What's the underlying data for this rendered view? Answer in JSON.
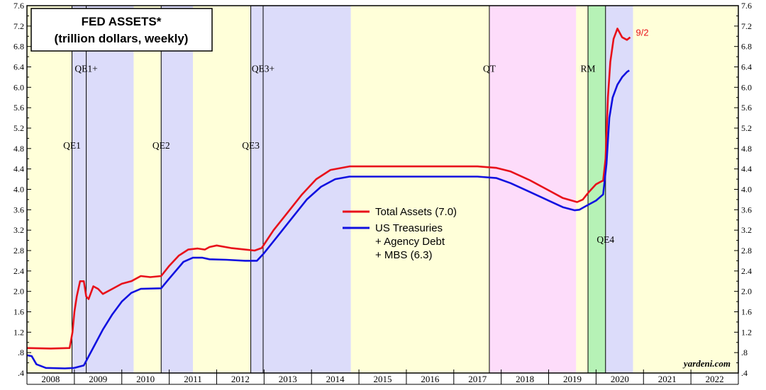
{
  "chart_data": {
    "type": "line",
    "title": "FED ASSETS*",
    "subtitle": "(trillion dollars, weekly)",
    "y_axis": {
      "ylim": [
        0.4,
        7.6
      ],
      "ticks": [
        ".4",
        ".8",
        "1.2",
        "1.6",
        "2.0",
        "2.4",
        "2.8",
        "3.2",
        "3.6",
        "4.0",
        "4.4",
        "4.8",
        "5.2",
        "5.6",
        "6.0",
        "6.4",
        "6.8",
        "7.2",
        "7.6"
      ],
      "tick_values": [
        0.4,
        0.8,
        1.2,
        1.6,
        2.0,
        2.4,
        2.8,
        3.2,
        3.6,
        4.0,
        4.4,
        4.8,
        5.2,
        5.6,
        6.0,
        6.4,
        6.8,
        7.2,
        7.6
      ],
      "both_sides": true
    },
    "x_axis": {
      "xlim": [
        2008.0,
        2023.0
      ],
      "year_labels": [
        "2008",
        "2009",
        "2010",
        "2011",
        "2012",
        "2013",
        "2014",
        "2015",
        "2016",
        "2017",
        "2018",
        "2019",
        "2020",
        "2021",
        "2022"
      ]
    },
    "shaded_periods": [
      {
        "start": 2008.0,
        "end": 2008.95,
        "color": "#ffffd9"
      },
      {
        "start": 2008.95,
        "end": 2010.25,
        "color": "#dcdcfa"
      },
      {
        "start": 2010.25,
        "end": 2010.83,
        "color": "#ffffd9"
      },
      {
        "start": 2010.83,
        "end": 2011.5,
        "color": "#dcdcfa"
      },
      {
        "start": 2011.5,
        "end": 2012.72,
        "color": "#ffffd9"
      },
      {
        "start": 2012.72,
        "end": 2014.83,
        "color": "#dcdcfa"
      },
      {
        "start": 2014.83,
        "end": 2017.75,
        "color": "#ffffd9"
      },
      {
        "start": 2017.75,
        "end": 2019.58,
        "color": "#fddcfa"
      },
      {
        "start": 2019.58,
        "end": 2019.83,
        "color": "#ffffd9"
      },
      {
        "start": 2019.83,
        "end": 2020.2,
        "color": "#b6f2b6"
      },
      {
        "start": 2020.2,
        "end": 2020.78,
        "color": "#dcdcfa"
      },
      {
        "start": 2020.78,
        "end": 2023.0,
        "color": "#ffffd9"
      }
    ],
    "events": [
      {
        "label": "QE1",
        "date": 2008.95,
        "label_y": 4.8
      },
      {
        "label": "QE1+",
        "date": 2009.25,
        "label_y": 6.3
      },
      {
        "label": "QE2",
        "date": 2010.83,
        "label_y": 4.8
      },
      {
        "label": "QE3",
        "date": 2012.72,
        "label_y": 4.8
      },
      {
        "label": "QE3+",
        "date": 2012.98,
        "label_y": 6.3
      },
      {
        "label": "QT",
        "date": 2017.75,
        "label_y": 6.3
      },
      {
        "label": "RM",
        "date": 2019.83,
        "label_y": 6.3
      },
      {
        "label": "QE4",
        "date": 2020.2,
        "label_y": 2.95
      }
    ],
    "series": [
      {
        "name": "Total Assets (7.0)",
        "color": "#e8101a",
        "points": [
          [
            2008.0,
            0.89
          ],
          [
            2008.5,
            0.88
          ],
          [
            2008.9,
            0.89
          ],
          [
            2008.96,
            1.2
          ],
          [
            2009.0,
            1.6
          ],
          [
            2009.05,
            1.9
          ],
          [
            2009.12,
            2.2
          ],
          [
            2009.2,
            2.2
          ],
          [
            2009.25,
            1.9
          ],
          [
            2009.3,
            1.85
          ],
          [
            2009.4,
            2.1
          ],
          [
            2009.5,
            2.05
          ],
          [
            2009.6,
            1.95
          ],
          [
            2009.8,
            2.05
          ],
          [
            2010.0,
            2.15
          ],
          [
            2010.2,
            2.2
          ],
          [
            2010.4,
            2.3
          ],
          [
            2010.6,
            2.28
          ],
          [
            2010.83,
            2.3
          ],
          [
            2011.0,
            2.5
          ],
          [
            2011.2,
            2.7
          ],
          [
            2011.4,
            2.82
          ],
          [
            2011.6,
            2.84
          ],
          [
            2011.75,
            2.82
          ],
          [
            2011.85,
            2.87
          ],
          [
            2012.0,
            2.9
          ],
          [
            2012.3,
            2.85
          ],
          [
            2012.6,
            2.82
          ],
          [
            2012.8,
            2.8
          ],
          [
            2012.95,
            2.85
          ],
          [
            2013.2,
            3.2
          ],
          [
            2013.5,
            3.55
          ],
          [
            2013.8,
            3.9
          ],
          [
            2014.1,
            4.2
          ],
          [
            2014.4,
            4.38
          ],
          [
            2014.8,
            4.45
          ],
          [
            2015.5,
            4.45
          ],
          [
            2016.5,
            4.45
          ],
          [
            2017.5,
            4.45
          ],
          [
            2017.9,
            4.42
          ],
          [
            2018.2,
            4.35
          ],
          [
            2018.6,
            4.18
          ],
          [
            2019.0,
            3.98
          ],
          [
            2019.3,
            3.83
          ],
          [
            2019.6,
            3.75
          ],
          [
            2019.72,
            3.8
          ],
          [
            2019.85,
            3.95
          ],
          [
            2020.0,
            4.1
          ],
          [
            2020.1,
            4.15
          ],
          [
            2020.15,
            4.17
          ],
          [
            2020.2,
            4.6
          ],
          [
            2020.25,
            5.8
          ],
          [
            2020.3,
            6.5
          ],
          [
            2020.37,
            6.95
          ],
          [
            2020.45,
            7.15
          ],
          [
            2020.55,
            6.98
          ],
          [
            2020.65,
            6.93
          ],
          [
            2020.72,
            6.98
          ]
        ]
      },
      {
        "name": "US Treasuries + Agency Debt + MBS (6.3)",
        "color": "#1010e0",
        "points": [
          [
            2008.0,
            0.75
          ],
          [
            2008.1,
            0.73
          ],
          [
            2008.2,
            0.57
          ],
          [
            2008.4,
            0.5
          ],
          [
            2008.8,
            0.49
          ],
          [
            2009.0,
            0.5
          ],
          [
            2009.2,
            0.55
          ],
          [
            2009.4,
            0.9
          ],
          [
            2009.6,
            1.25
          ],
          [
            2009.8,
            1.55
          ],
          [
            2010.0,
            1.8
          ],
          [
            2010.2,
            1.97
          ],
          [
            2010.4,
            2.05
          ],
          [
            2010.83,
            2.06
          ],
          [
            2011.0,
            2.25
          ],
          [
            2011.3,
            2.58
          ],
          [
            2011.5,
            2.66
          ],
          [
            2011.7,
            2.66
          ],
          [
            2011.85,
            2.63
          ],
          [
            2012.2,
            2.62
          ],
          [
            2012.6,
            2.6
          ],
          [
            2012.85,
            2.6
          ],
          [
            2013.0,
            2.75
          ],
          [
            2013.3,
            3.1
          ],
          [
            2013.6,
            3.45
          ],
          [
            2013.9,
            3.8
          ],
          [
            2014.2,
            4.05
          ],
          [
            2014.5,
            4.2
          ],
          [
            2014.8,
            4.25
          ],
          [
            2015.5,
            4.25
          ],
          [
            2016.5,
            4.25
          ],
          [
            2017.5,
            4.25
          ],
          [
            2017.9,
            4.22
          ],
          [
            2018.2,
            4.12
          ],
          [
            2018.6,
            3.95
          ],
          [
            2019.0,
            3.78
          ],
          [
            2019.3,
            3.65
          ],
          [
            2019.55,
            3.59
          ],
          [
            2019.65,
            3.6
          ],
          [
            2019.8,
            3.68
          ],
          [
            2020.0,
            3.78
          ],
          [
            2020.15,
            3.9
          ],
          [
            2020.22,
            4.5
          ],
          [
            2020.28,
            5.4
          ],
          [
            2020.35,
            5.8
          ],
          [
            2020.45,
            6.05
          ],
          [
            2020.55,
            6.2
          ],
          [
            2020.65,
            6.3
          ],
          [
            2020.7,
            6.33
          ]
        ]
      }
    ],
    "legend": {
      "placement": "center",
      "entries": [
        {
          "series": 0,
          "lines": [
            "Total Assets (7.0)"
          ]
        },
        {
          "series": 1,
          "lines": [
            "US Treasuries",
            "+ Agency Debt",
            "+ MBS (6.3)"
          ]
        }
      ]
    },
    "end_label": "9/2",
    "credit": "yardeni.com",
    "grid": false
  }
}
